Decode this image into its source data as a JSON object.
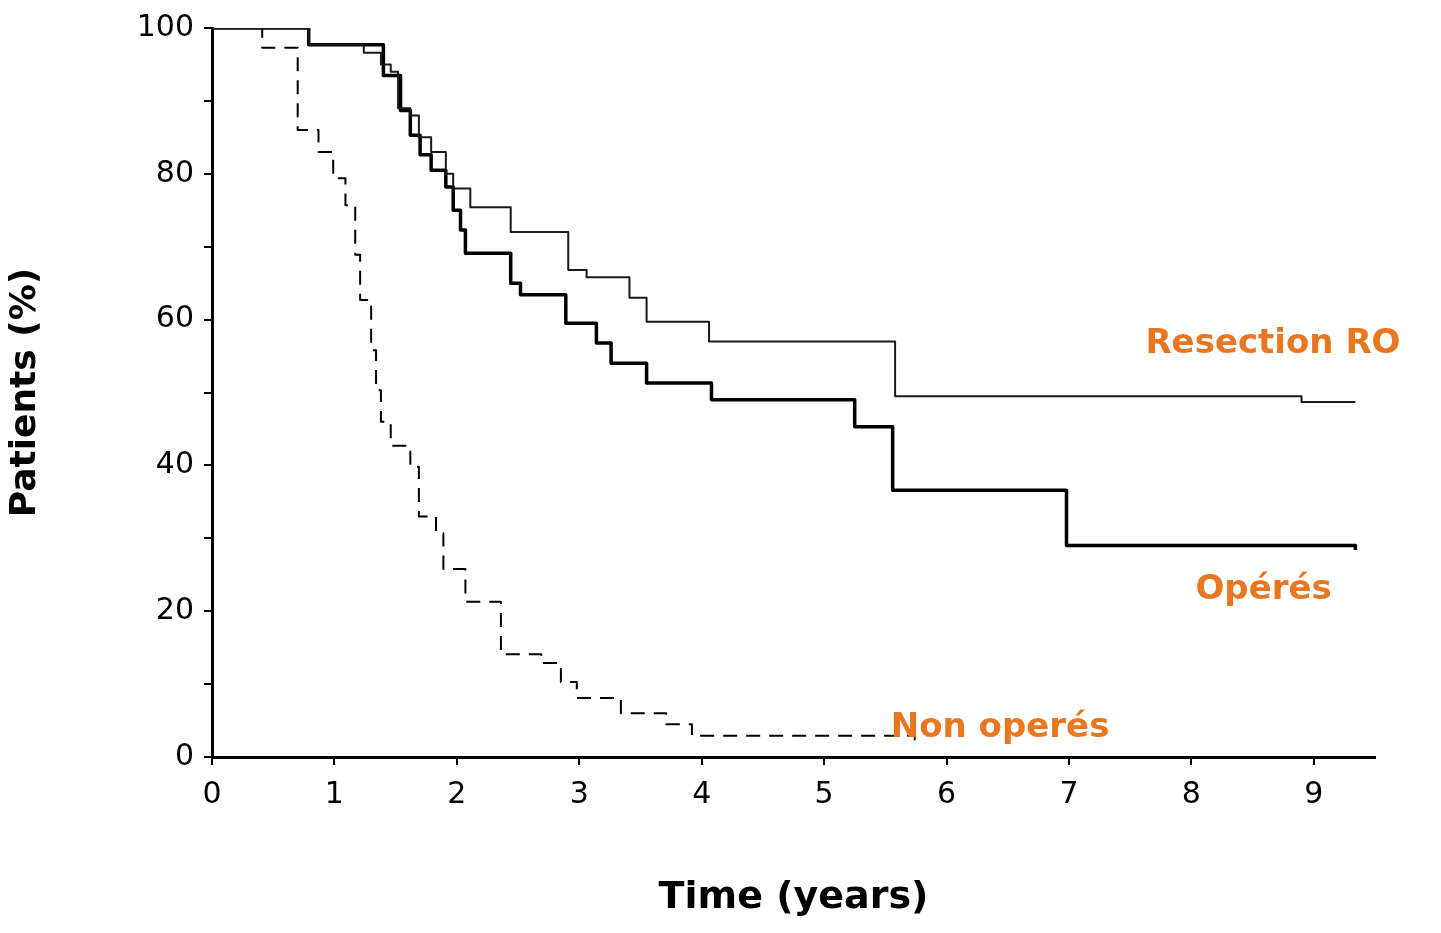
{
  "chart_data": {
    "type": "step",
    "xlabel": "Time (years)",
    "ylabel": "Patients (%)",
    "xlim": [
      0,
      9.5
    ],
    "xticks": [
      0,
      1,
      2,
      3,
      4,
      5,
      6,
      7,
      8,
      9
    ],
    "ylim": [
      0,
      100
    ],
    "yticks": [
      0,
      {
        "value": 10,
        "label": null
      },
      20,
      {
        "value": 30,
        "label": null
      },
      40,
      {
        "value": 50,
        "label": null
      },
      60,
      {
        "value": 70,
        "label": null
      },
      80,
      {
        "value": 90,
        "label": null
      },
      100
    ],
    "grid": false,
    "legend": false,
    "marker": "none",
    "series": [
      {
        "name": "Resection RO",
        "color": "#1a1a1a",
        "line_style": "solid",
        "x": [
          0,
          0.79,
          1.24,
          1.38,
          1.46,
          1.52,
          1.62,
          1.69,
          1.79,
          1.91,
          1.97,
          2.11,
          2.44,
          2.91,
          3.06,
          3.41,
          3.55,
          4.06,
          5.58,
          8.9,
          9.34
        ],
        "values": [
          100,
          97.7,
          96.6,
          95,
          94,
          89,
          88,
          85,
          83,
          80,
          78,
          75.4,
          72,
          66.8,
          65.8,
          63,
          59.7,
          57,
          49.5,
          48.7,
          48.7
        ]
      },
      {
        "name": "Opérés",
        "color": "#000000",
        "line_style": "solid",
        "x": [
          0,
          0.79,
          1.4,
          1.54,
          1.62,
          1.7,
          1.79,
          1.91,
          1.97,
          2.03,
          2.07,
          2.44,
          2.52,
          2.89,
          3.14,
          3.26,
          3.55,
          4.08,
          5.25,
          5.56,
          6.98,
          9.34
        ],
        "values": [
          100,
          97.7,
          93.5,
          88.7,
          85.3,
          82.6,
          80.5,
          78.2,
          75,
          72.3,
          69.1,
          65,
          63.4,
          59.5,
          56.8,
          54,
          51.3,
          49,
          45.3,
          36.6,
          29,
          28.4
        ]
      },
      {
        "name": "Non operés",
        "color": "#000000",
        "line_style": "dashed",
        "x": [
          0,
          0.41,
          0.7,
          0.87,
          0.99,
          1.09,
          1.17,
          1.21,
          1.3,
          1.34,
          1.38,
          1.46,
          1.62,
          1.69,
          1.83,
          1.89,
          2.07,
          2.36,
          2.69,
          2.85,
          2.98,
          3.34,
          3.71,
          3.92,
          5.74
        ],
        "values": [
          100,
          97.3,
          86,
          83,
          79.4,
          75.7,
          68.9,
          62.7,
          55.8,
          50.3,
          46,
          42.7,
          39.8,
          33,
          30.7,
          25.8,
          21.3,
          14.1,
          12.9,
          10.3,
          8.1,
          6,
          4.5,
          2.9,
          2.3
        ]
      }
    ]
  }
}
